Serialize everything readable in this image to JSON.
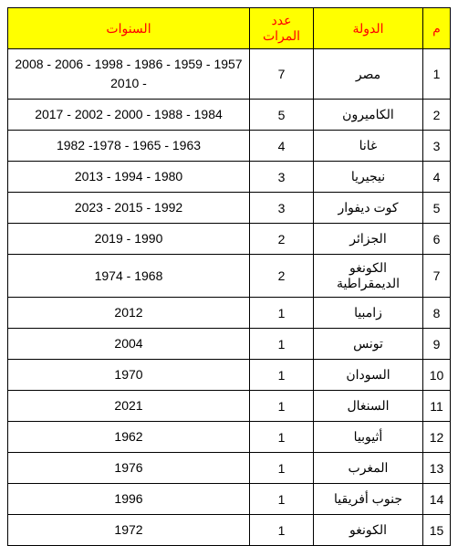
{
  "headers": {
    "num": "م",
    "country": "الدولة",
    "count": "عدد المرات",
    "years": "السنوات"
  },
  "rows": [
    {
      "num": "1",
      "country": "مصر",
      "count": "7",
      "years": "1957 - 1959 - 1986 - 1998 - 2006 - 2008 - 2010"
    },
    {
      "num": "2",
      "country": "الكاميرون",
      "count": "5",
      "years": "1984 - 1988 - 2000 - 2002 - 2017"
    },
    {
      "num": "3",
      "country": "غانا",
      "count": "4",
      "years": "1963 - 1965 - 1978- 1982"
    },
    {
      "num": "4",
      "country": "نيجيريا",
      "count": "3",
      "years": "1980 - 1994 - 2013"
    },
    {
      "num": "5",
      "country": "كوت ديفوار",
      "count": "3",
      "years": "1992 - 2015 - 2023"
    },
    {
      "num": "6",
      "country": "الجزائر",
      "count": "2",
      "years": "1990 - 2019"
    },
    {
      "num": "7",
      "country": "الكونغو الديمقراطية",
      "count": "2",
      "years": "1968 - 1974"
    },
    {
      "num": "8",
      "country": "زامبيا",
      "count": "1",
      "years": "2012"
    },
    {
      "num": "9",
      "country": "تونس",
      "count": "1",
      "years": "2004"
    },
    {
      "num": "10",
      "country": "السودان",
      "count": "1",
      "years": "1970"
    },
    {
      "num": "11",
      "country": "السنغال",
      "count": "1",
      "years": "2021"
    },
    {
      "num": "12",
      "country": "أثيوبيا",
      "count": "1",
      "years": "1962"
    },
    {
      "num": "13",
      "country": "المغرب",
      "count": "1",
      "years": "1976"
    },
    {
      "num": "14",
      "country": "جنوب أفريقيا",
      "count": "1",
      "years": "1996"
    },
    {
      "num": "15",
      "country": "الكونغو",
      "count": "1",
      "years": "1972"
    }
  ],
  "styling": {
    "header_bg": "#ffff00",
    "header_color": "#ff0000",
    "border_color": "#000000",
    "cell_bg": "#ffffff",
    "cell_color": "#000000",
    "font_size": 14
  }
}
